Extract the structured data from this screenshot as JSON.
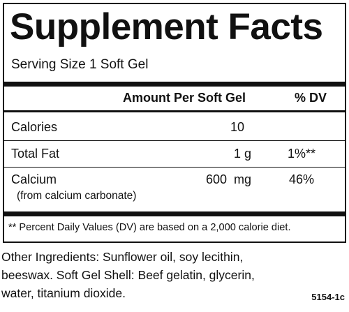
{
  "title": "Supplement Facts",
  "serving_size": "Serving Size 1 Soft Gel",
  "table": {
    "header": [
      "Amount Per Soft Gel",
      "% DV"
    ],
    "rows": [
      {
        "name": "Calories",
        "amount": "10"
      },
      {
        "name": "Total Fat",
        "amount": "1 g",
        "dv": "1%**"
      },
      {
        "name": "Calcium",
        "sub": "(from calcium carbonate)",
        "amount": "600  mg",
        "dv": "46%"
      }
    ]
  },
  "footnote": "** Percent Daily Values (DV) are based on a 2,000 calorie diet.",
  "other_ingredients": [
    "Other Ingredients: Sunflower oil, soy lecithin,",
    "beeswax. Soft Gel Shell: Beef gelatin, glycerin,",
    "water, titanium dioxide."
  ],
  "code": "5154-1c"
}
